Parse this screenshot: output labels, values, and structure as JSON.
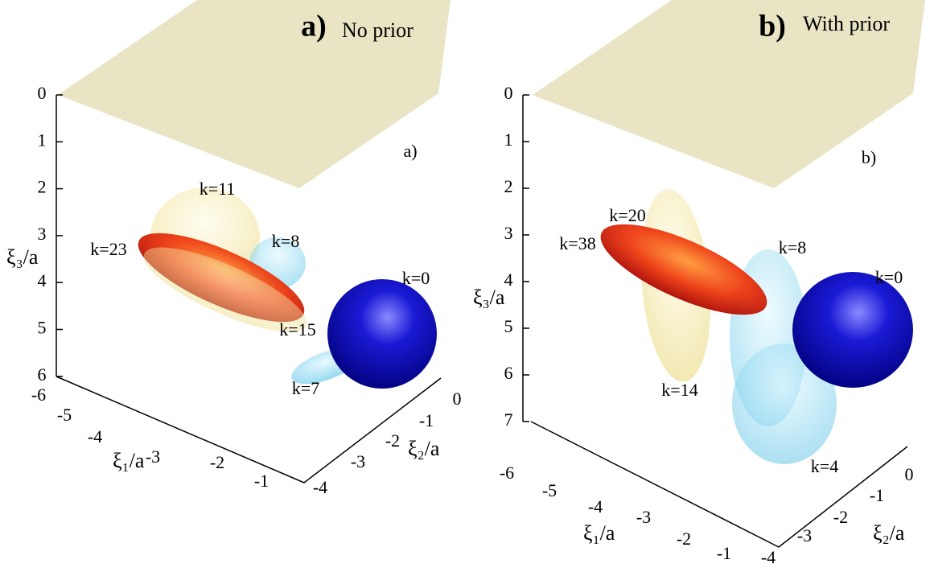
{
  "panels": [
    {
      "letter": "a)",
      "title": "No prior",
      "inner_label": "a)",
      "z_label": "ξ₃/a",
      "x_label": "ξ₁/a",
      "y_label": "ξ₂/a",
      "z_ticks": [
        0,
        1,
        2,
        3,
        4,
        5,
        6
      ],
      "x_ticks": [
        -6,
        -5,
        -4,
        -3,
        -2,
        -1
      ],
      "y_ticks": [
        -4,
        -3,
        -2,
        -1,
        0
      ],
      "labels": [
        "k=11",
        "k=8",
        "k=23",
        "k=0",
        "k=15",
        "k=7"
      ]
    },
    {
      "letter": "b)",
      "title": "With prior",
      "inner_label": "b)",
      "z_label": "ξ₃/a",
      "x_label": "ξ₁/a",
      "y_label": "ξ₂/a",
      "z_ticks": [
        0,
        1,
        2,
        3,
        4,
        5,
        6,
        7
      ],
      "x_ticks": [
        -6,
        -5,
        -4,
        -3,
        -2,
        -1
      ],
      "y_ticks": [
        -4,
        -3,
        -2,
        -1,
        0
      ],
      "labels": [
        "k=20",
        "k=38",
        "k=8",
        "k=0",
        "k=14",
        "k=4"
      ]
    }
  ]
}
